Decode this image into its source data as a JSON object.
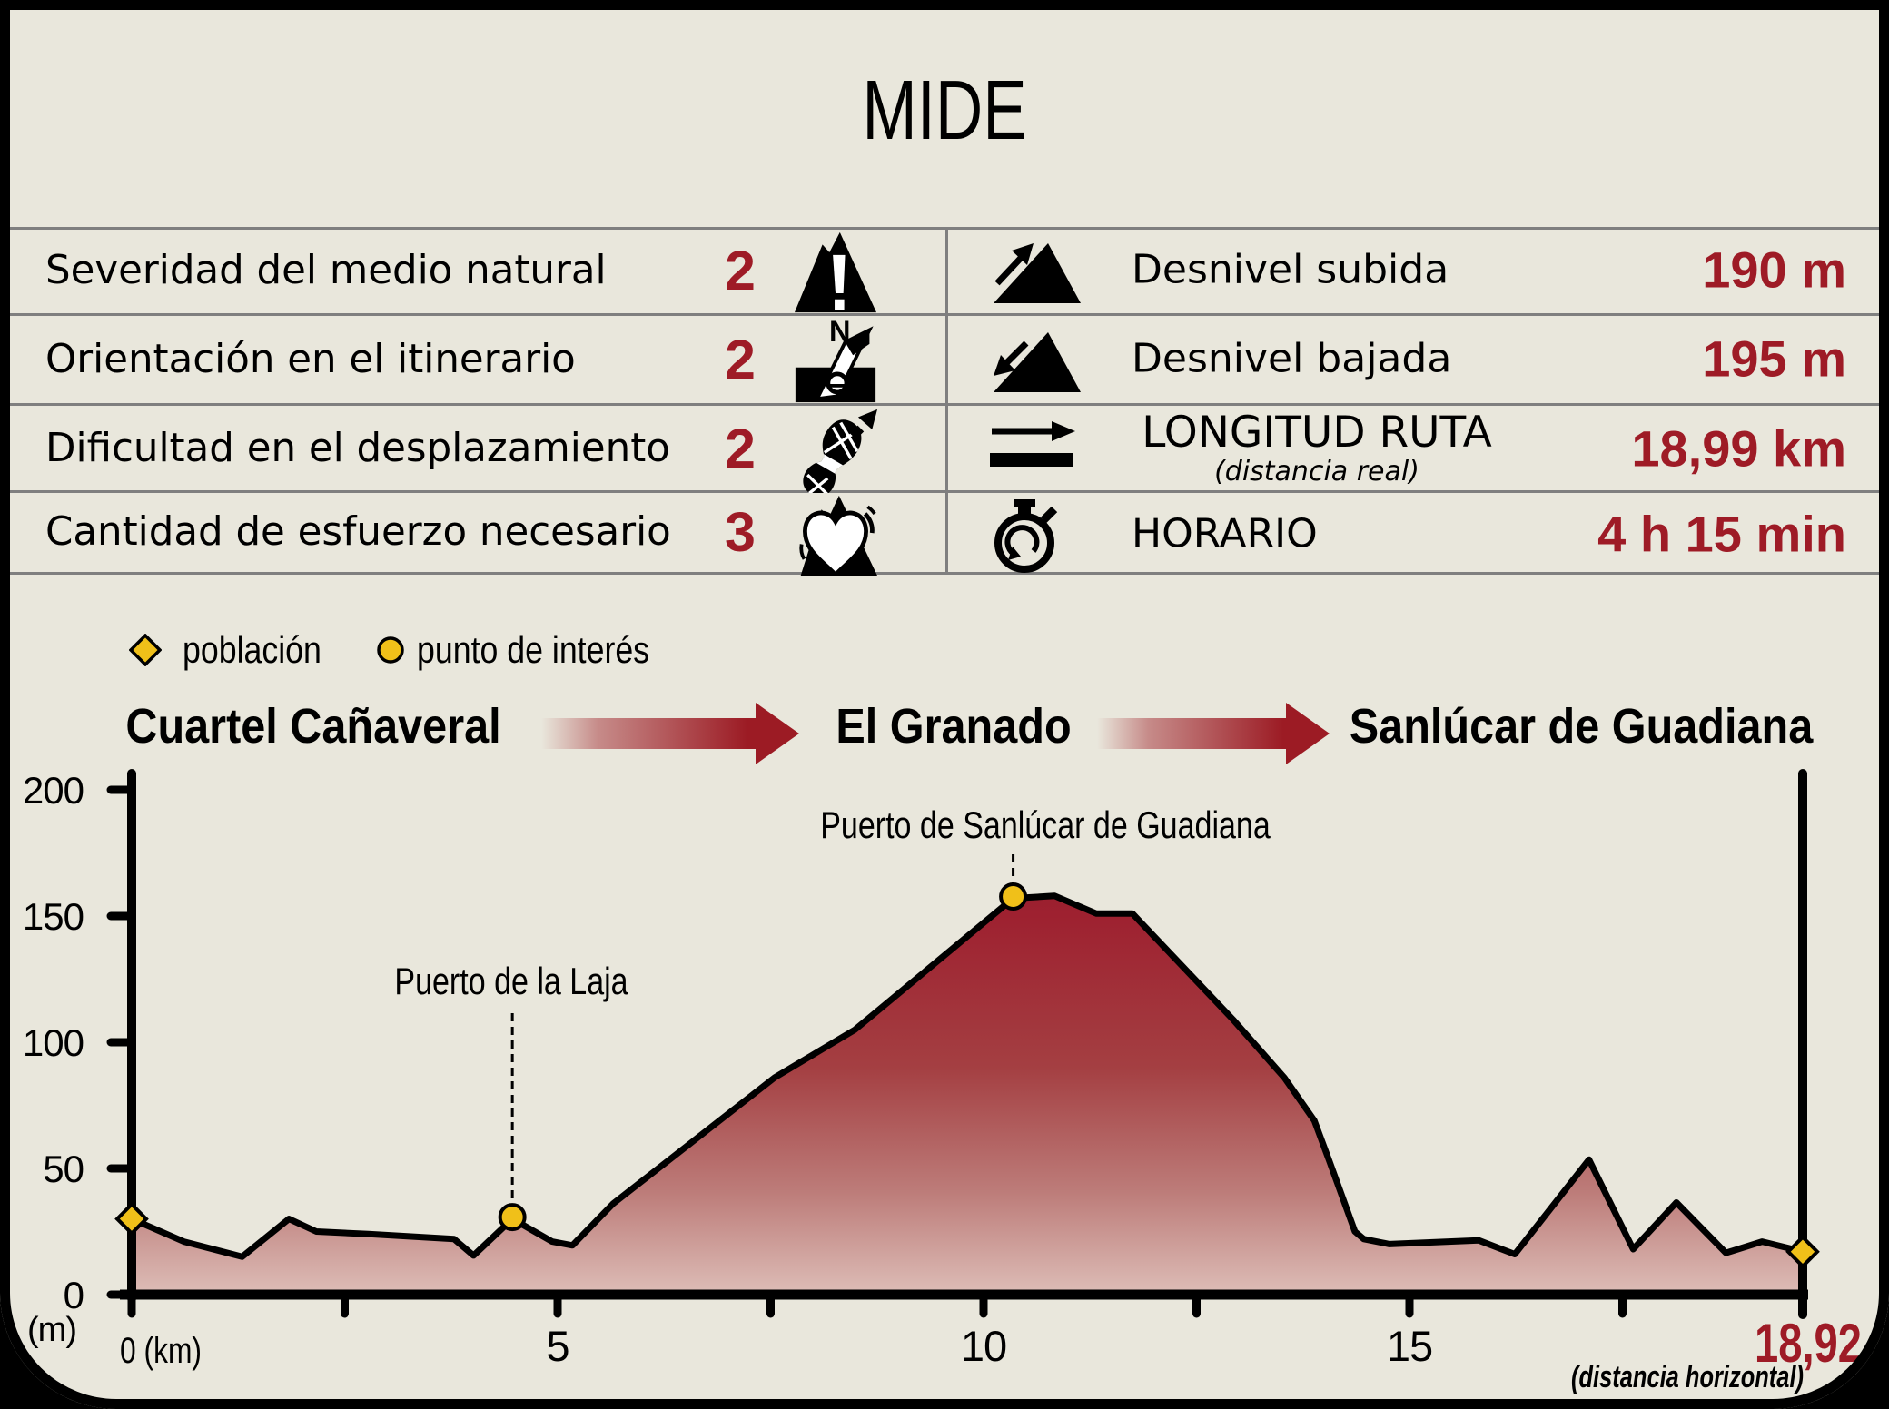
{
  "title": "MIDE",
  "table": {
    "left": [
      {
        "label": "Severidad del medio natural",
        "value": "2",
        "icon": "mountain-warning-icon"
      },
      {
        "label": "Orientación en el itinerario",
        "value": "2",
        "icon": "compass-icon"
      },
      {
        "label": "Dificultad en el desplazamiento",
        "value": "2",
        "icon": "footprint-icon"
      },
      {
        "label": "Cantidad de esfuerzo necesario",
        "value": "3",
        "icon": "heart-mountain-icon"
      }
    ],
    "right": [
      {
        "label": "Desnivel subida",
        "value": "190 m",
        "icon": "slope-up-icon"
      },
      {
        "label": "Desnivel bajada",
        "value": "195 m",
        "icon": "slope-down-icon"
      },
      {
        "label": "LONGITUD RUTA",
        "sublabel": "(distancia real)",
        "value": "18,99 km",
        "icon": "route-length-icon"
      },
      {
        "label": "HORARIO",
        "value": "4 h 15 min",
        "icon": "stopwatch-icon"
      }
    ]
  },
  "legend": [
    {
      "marker": "diamond",
      "label": "población"
    },
    {
      "marker": "circle",
      "label": "punto de interés"
    }
  ],
  "route_header": {
    "stops": [
      "Cuartel Cañaveral",
      "El Granado",
      "Sanlúcar de Guadiana"
    ]
  },
  "chart_data": {
    "type": "area",
    "xlabel": "0 (km)",
    "ylabel": "(m)",
    "xlim": [
      0,
      18.92
    ],
    "ylim": [
      0,
      200
    ],
    "grid": false,
    "x_ticks_major": [
      {
        "km": 5,
        "label": "5"
      },
      {
        "km": 10,
        "label": "10"
      },
      {
        "km": 15,
        "label": "15"
      }
    ],
    "x_ticks_minor": [
      2.5,
      7.5,
      12.5,
      17.5
    ],
    "y_ticks": [
      {
        "m": 0,
        "label": "0"
      },
      {
        "m": 50,
        "label": "50"
      },
      {
        "m": 100,
        "label": "100"
      },
      {
        "m": 150,
        "label": "150"
      },
      {
        "m": 200,
        "label": "200"
      }
    ],
    "end_label": "18,92",
    "end_sublabel": "(distancia horizontal)",
    "profile": [
      [
        0,
        30
      ],
      [
        0.59,
        21
      ],
      [
        1.25,
        15
      ],
      [
        1.78,
        30
      ],
      [
        2.09,
        25
      ],
      [
        2.68,
        24
      ],
      [
        3.65,
        22
      ],
      [
        3.87,
        15.5
      ],
      [
        4.31,
        30
      ],
      [
        4.76,
        21
      ],
      [
        4.99,
        19.5
      ],
      [
        5.45,
        36
      ],
      [
        7.28,
        86
      ],
      [
        8.19,
        105
      ],
      [
        9.98,
        157
      ],
      [
        10.45,
        158
      ],
      [
        10.92,
        151
      ],
      [
        11.33,
        151
      ],
      [
        12.47,
        109
      ],
      [
        13.05,
        86
      ],
      [
        13.39,
        69
      ],
      [
        13.56,
        53
      ],
      [
        13.85,
        25
      ],
      [
        13.95,
        22
      ],
      [
        14.24,
        20
      ],
      [
        15.25,
        21.5
      ],
      [
        15.66,
        16
      ],
      [
        16.5,
        53.5
      ],
      [
        17.0,
        18
      ],
      [
        17.49,
        36.5
      ],
      [
        18.05,
        16.5
      ],
      [
        18.46,
        21
      ],
      [
        18.92,
        17
      ]
    ],
    "markers": [
      {
        "type": "diamond",
        "km": 0,
        "m": 30,
        "label": ""
      },
      {
        "type": "circle",
        "km": 4.31,
        "m": 30,
        "label": "Puerto de la Laja"
      },
      {
        "type": "circle",
        "km": 9.98,
        "m": 157,
        "label": "Puerto de Sanlúcar de Guadiana"
      },
      {
        "type": "diamond",
        "km": 18.92,
        "m": 17,
        "label": ""
      }
    ],
    "colors": {
      "background": "#e9e7dc",
      "value_red": "#9e1b26",
      "marker_gold": "#f0c019",
      "area_top": "#8b1b26",
      "area_mid": "#a43f42",
      "area_bottom": "#ddbdb7",
      "line_black": "#000000",
      "table_line_gray": "#7f7f7f"
    }
  }
}
